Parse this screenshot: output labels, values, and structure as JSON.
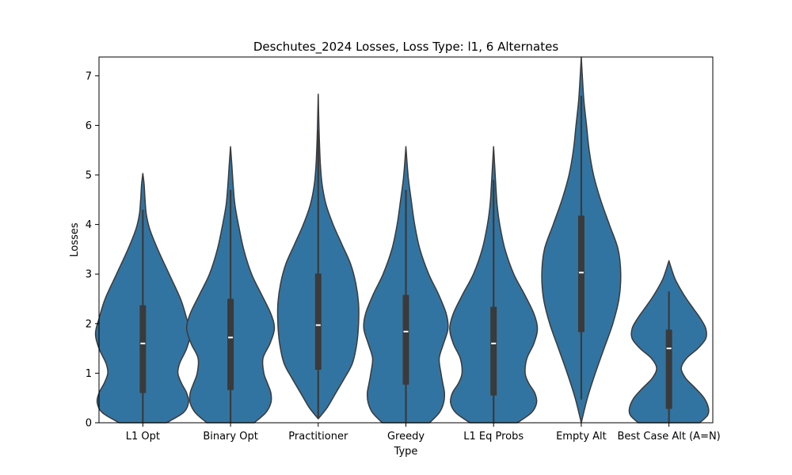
{
  "chart_data": {
    "type": "violin",
    "title": "Deschutes_2024 Losses, Loss Type: l1, 6 Alternates",
    "xlabel": "Type",
    "ylabel": "Losses",
    "ylim": [
      0,
      7.38
    ],
    "yticks": [
      "0",
      "1",
      "2",
      "3",
      "4",
      "5",
      "6",
      "7"
    ],
    "grid": false,
    "fill_color": "#3274a1",
    "edge_color": "#3a3a3a",
    "categories": [
      "L1 Opt",
      "Binary Opt",
      "Practitioner",
      "Greedy",
      "L1 Eq Probs",
      "Empty Alt",
      "Best Case Alt (A=N)"
    ],
    "series": [
      {
        "category": "L1 Opt",
        "median": 1.6,
        "q1": 0.6,
        "q3": 2.37,
        "whisker_low": 0.0,
        "whisker_high": 4.3,
        "violin": {
          "y": [
            0,
            0.2,
            0.4,
            0.6,
            0.8,
            1.0,
            1.2,
            1.5,
            1.8,
            2.1,
            2.5,
            3.0,
            3.5,
            3.9,
            4.2,
            4.5,
            4.8,
            5.03
          ],
          "halfwidth": [
            0.27,
            0.46,
            0.52,
            0.5,
            0.44,
            0.4,
            0.42,
            0.5,
            0.54,
            0.5,
            0.43,
            0.3,
            0.17,
            0.08,
            0.04,
            0.025,
            0.015,
            0.0
          ]
        }
      },
      {
        "category": "Binary Opt",
        "median": 1.72,
        "q1": 0.66,
        "q3": 2.5,
        "whisker_low": 0.0,
        "whisker_high": 4.7,
        "violin": {
          "y": [
            0,
            0.2,
            0.4,
            0.6,
            0.8,
            1.0,
            1.3,
            1.6,
            1.9,
            2.2,
            2.6,
            3.0,
            3.5,
            4.0,
            4.4,
            4.8,
            5.2,
            5.57
          ],
          "halfwidth": [
            0.27,
            0.4,
            0.46,
            0.46,
            0.42,
            0.38,
            0.37,
            0.45,
            0.5,
            0.46,
            0.35,
            0.24,
            0.15,
            0.09,
            0.05,
            0.03,
            0.015,
            0.0
          ]
        }
      },
      {
        "category": "Practitioner",
        "median": 1.97,
        "q1": 1.07,
        "q3": 3.01,
        "whisker_low": 0.08,
        "whisker_high": 5.9,
        "violin": {
          "y": [
            0.08,
            0.3,
            0.6,
            0.9,
            1.2,
            1.6,
            2.0,
            2.4,
            2.8,
            3.2,
            3.6,
            4.0,
            4.4,
            4.8,
            5.2,
            5.6,
            6.0,
            6.63
          ],
          "halfwidth": [
            0.0,
            0.1,
            0.2,
            0.3,
            0.39,
            0.44,
            0.46,
            0.46,
            0.43,
            0.37,
            0.27,
            0.17,
            0.09,
            0.045,
            0.025,
            0.015,
            0.008,
            0.0
          ]
        }
      },
      {
        "category": "Greedy",
        "median": 1.84,
        "q1": 0.77,
        "q3": 2.58,
        "whisker_low": 0.0,
        "whisker_high": 4.7,
        "violin": {
          "y": [
            0,
            0.2,
            0.4,
            0.6,
            0.8,
            1.0,
            1.3,
            1.6,
            1.9,
            2.2,
            2.6,
            3.0,
            3.5,
            4.0,
            4.5,
            4.9,
            5.2,
            5.57
          ],
          "halfwidth": [
            0.27,
            0.38,
            0.43,
            0.44,
            0.42,
            0.4,
            0.38,
            0.43,
            0.48,
            0.46,
            0.37,
            0.26,
            0.16,
            0.1,
            0.06,
            0.03,
            0.015,
            0.0
          ]
        }
      },
      {
        "category": "L1 Eq Probs",
        "median": 1.6,
        "q1": 0.55,
        "q3": 2.34,
        "whisker_low": 0.0,
        "whisker_high": 4.9,
        "violin": {
          "y": [
            0,
            0.2,
            0.4,
            0.6,
            0.8,
            1.0,
            1.3,
            1.6,
            1.9,
            2.2,
            2.6,
            3.0,
            3.5,
            4.0,
            4.4,
            4.8,
            5.2,
            5.57
          ],
          "halfwidth": [
            0.27,
            0.43,
            0.49,
            0.47,
            0.4,
            0.36,
            0.38,
            0.46,
            0.5,
            0.46,
            0.35,
            0.23,
            0.13,
            0.07,
            0.04,
            0.025,
            0.012,
            0.0
          ]
        }
      },
      {
        "category": "Empty Alt",
        "median": 3.03,
        "q1": 1.83,
        "q3": 4.18,
        "whisker_low": 0.47,
        "whisker_high": 6.6,
        "violin": {
          "y": [
            0,
            0.5,
            1.0,
            1.5,
            2.0,
            2.5,
            3.0,
            3.5,
            4.0,
            4.5,
            5.0,
            5.5,
            6.0,
            6.5,
            7.0,
            7.38
          ],
          "halfwidth": [
            0.0,
            0.07,
            0.16,
            0.26,
            0.36,
            0.43,
            0.45,
            0.42,
            0.32,
            0.22,
            0.14,
            0.09,
            0.06,
            0.03,
            0.012,
            0.0
          ]
        }
      },
      {
        "category": "Best Case Alt (A=N)",
        "median": 1.5,
        "q1": 0.28,
        "q3": 1.88,
        "whisker_low": 0.0,
        "whisker_high": 2.65,
        "violin": {
          "y": [
            0,
            0.15,
            0.3,
            0.5,
            0.7,
            0.9,
            1.1,
            1.3,
            1.5,
            1.7,
            1.9,
            2.1,
            2.3,
            2.5,
            2.7,
            2.9,
            3.1,
            3.27
          ],
          "halfwidth": [
            0.35,
            0.44,
            0.45,
            0.4,
            0.3,
            0.19,
            0.14,
            0.2,
            0.33,
            0.42,
            0.42,
            0.36,
            0.28,
            0.2,
            0.13,
            0.07,
            0.03,
            0.0
          ]
        }
      }
    ]
  }
}
